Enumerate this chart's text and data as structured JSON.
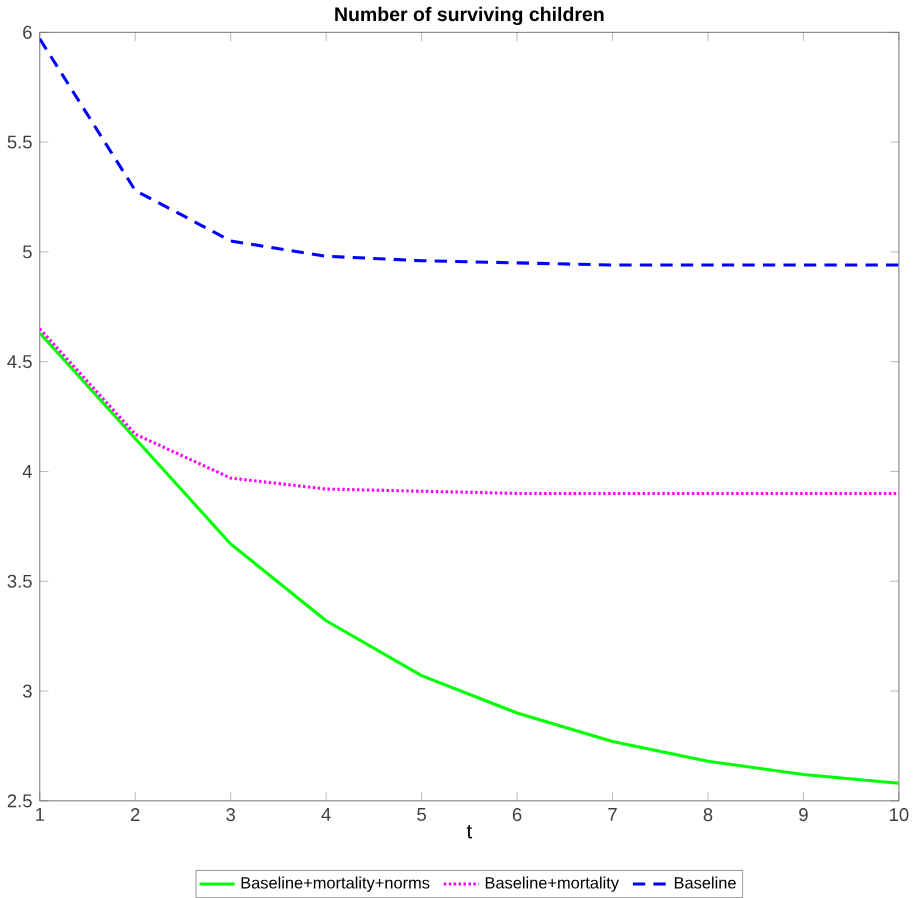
{
  "chart_data": {
    "type": "line",
    "title": "Number of surviving children",
    "xlabel": "t",
    "x": [
      1,
      2,
      3,
      4,
      5,
      6,
      7,
      8,
      9,
      10
    ],
    "xlim": [
      1,
      10
    ],
    "xticks": [
      1,
      2,
      3,
      4,
      5,
      6,
      7,
      8,
      9,
      10
    ],
    "ylim": [
      2.5,
      6
    ],
    "yticks": [
      2.5,
      3,
      3.5,
      4,
      4.5,
      5,
      5.5,
      6
    ],
    "grid": false,
    "legend": "bottom",
    "series": [
      {
        "name": "Baseline+mortality+norms",
        "color": "#00ff00",
        "line_style": "solid",
        "values": [
          4.63,
          4.15,
          3.67,
          3.32,
          3.07,
          2.9,
          2.77,
          2.68,
          2.62,
          2.58
        ]
      },
      {
        "name": "Baseline+mortality",
        "color": "#ff00ff",
        "line_style": "dotted",
        "values": [
          4.65,
          4.17,
          3.97,
          3.92,
          3.91,
          3.9,
          3.9,
          3.9,
          3.9,
          3.9
        ]
      },
      {
        "name": "Baseline",
        "color": "#0000ff",
        "line_style": "dashed",
        "values": [
          5.97,
          5.28,
          5.05,
          4.98,
          4.96,
          4.95,
          4.94,
          4.94,
          4.94,
          4.94
        ]
      }
    ]
  }
}
